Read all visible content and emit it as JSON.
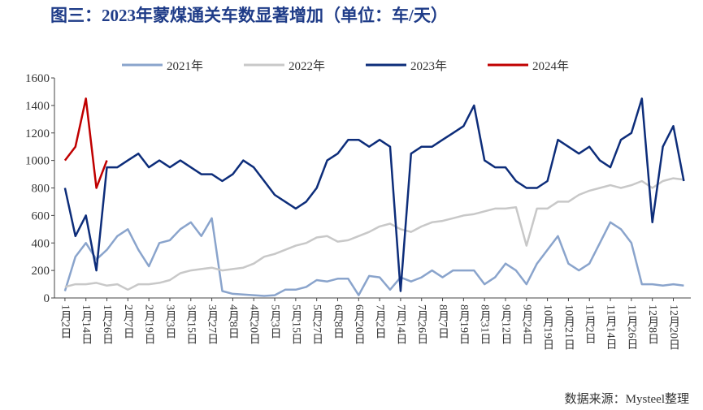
{
  "chart_data": {
    "type": "line",
    "title": "图三：2023年蒙煤通关车数显著增加（单位：车/天）",
    "source": "数据来源：Mysteel整理",
    "x": [
      0,
      6,
      12,
      18,
      24,
      30,
      36,
      42,
      48,
      54,
      60,
      66,
      72,
      78,
      84,
      90,
      96,
      102,
      108,
      114,
      120,
      126,
      132,
      138,
      144,
      150,
      156,
      162,
      168,
      174,
      180,
      186,
      192,
      198,
      204,
      210,
      216,
      222,
      228,
      234,
      240,
      246,
      252,
      258,
      264,
      270,
      276,
      282,
      288,
      294,
      300,
      306,
      312,
      318,
      324,
      330,
      336,
      342,
      348,
      354
    ],
    "xlim": [
      -6,
      358
    ],
    "xticks": [
      {
        "value": 0,
        "label": "1月2日"
      },
      {
        "value": 12,
        "label": "1月14日"
      },
      {
        "value": 24,
        "label": "1月26日"
      },
      {
        "value": 36,
        "label": "2月7日"
      },
      {
        "value": 48,
        "label": "2月19日"
      },
      {
        "value": 60,
        "label": "3月3日"
      },
      {
        "value": 72,
        "label": "3月15日"
      },
      {
        "value": 84,
        "label": "3月27日"
      },
      {
        "value": 96,
        "label": "4月8日"
      },
      {
        "value": 108,
        "label": "4月20日"
      },
      {
        "value": 120,
        "label": "5月3日"
      },
      {
        "value": 132,
        "label": "5月15日"
      },
      {
        "value": 144,
        "label": "5月27日"
      },
      {
        "value": 156,
        "label": "6月8日"
      },
      {
        "value": 168,
        "label": "6月20日"
      },
      {
        "value": 180,
        "label": "7月2日"
      },
      {
        "value": 192,
        "label": "7月14日"
      },
      {
        "value": 204,
        "label": "7月26日"
      },
      {
        "value": 216,
        "label": "8月7日"
      },
      {
        "value": 228,
        "label": "8月19日"
      },
      {
        "value": 240,
        "label": "8月31日"
      },
      {
        "value": 252,
        "label": "9月12日"
      },
      {
        "value": 264,
        "label": "9月24日"
      },
      {
        "value": 276,
        "label": "10月19日"
      },
      {
        "value": 288,
        "label": "10月21日"
      },
      {
        "value": 300,
        "label": "11月2日"
      },
      {
        "value": 312,
        "label": "11月14日"
      },
      {
        "value": 324,
        "label": "11月26日"
      },
      {
        "value": 336,
        "label": "12月8日"
      },
      {
        "value": 348,
        "label": "12月20日"
      }
    ],
    "ylim": [
      0,
      1600
    ],
    "yticks": [
      0,
      200,
      400,
      600,
      800,
      1000,
      1200,
      1400,
      1600
    ],
    "legend": "top",
    "series": [
      {
        "name": "2021年",
        "color": "#8aa4cc",
        "values": [
          50,
          300,
          400,
          280,
          350,
          450,
          500,
          350,
          230,
          400,
          420,
          500,
          550,
          450,
          580,
          50,
          30,
          25,
          20,
          15,
          20,
          60,
          60,
          80,
          130,
          120,
          140,
          140,
          20,
          160,
          150,
          60,
          150,
          120,
          150,
          200,
          150,
          200,
          200,
          200,
          100,
          150,
          250,
          200,
          100,
          250,
          350,
          450,
          250,
          200,
          250,
          400,
          550,
          500,
          400,
          100,
          100,
          90,
          100,
          90
        ]
      },
      {
        "name": "2022年",
        "color": "#c8c8c8",
        "values": [
          80,
          100,
          100,
          110,
          90,
          100,
          60,
          100,
          100,
          110,
          130,
          180,
          200,
          210,
          220,
          200,
          210,
          220,
          250,
          300,
          320,
          350,
          380,
          400,
          440,
          450,
          410,
          420,
          450,
          480,
          520,
          540,
          500,
          480,
          520,
          550,
          560,
          580,
          600,
          610,
          630,
          650,
          650,
          660,
          380,
          650,
          650,
          700,
          700,
          750,
          780,
          800,
          820,
          800,
          820,
          850,
          800,
          850,
          870,
          860
        ]
      },
      {
        "name": "2023年",
        "color": "#0d2d7a",
        "values": [
          800,
          450,
          600,
          200,
          950,
          950,
          1000,
          1050,
          950,
          1000,
          950,
          1000,
          950,
          900,
          900,
          850,
          900,
          1000,
          950,
          850,
          750,
          700,
          650,
          700,
          800,
          1000,
          1050,
          1150,
          1150,
          1100,
          1150,
          1100,
          50,
          1050,
          1100,
          1100,
          1150,
          1200,
          1250,
          1400,
          1000,
          950,
          950,
          850,
          800,
          800,
          850,
          1150,
          1100,
          1050,
          1100,
          1000,
          950,
          1150,
          1200,
          1450,
          550,
          1100,
          1250,
          850
        ]
      },
      {
        "name": "2024年",
        "color": "#c00000",
        "values": [
          1000,
          1100,
          1450,
          800,
          1000,
          null,
          null,
          null,
          null,
          null,
          null,
          null,
          null,
          null,
          null,
          null,
          null,
          null,
          null,
          null,
          null,
          null,
          null,
          null,
          null,
          null,
          null,
          null,
          null,
          null,
          null,
          null,
          null,
          null,
          null,
          null,
          null,
          null,
          null,
          null,
          null,
          null,
          null,
          null,
          null,
          null,
          null,
          null,
          null,
          null,
          null,
          null,
          null,
          null,
          null,
          null,
          null,
          null,
          null,
          null
        ]
      }
    ]
  }
}
